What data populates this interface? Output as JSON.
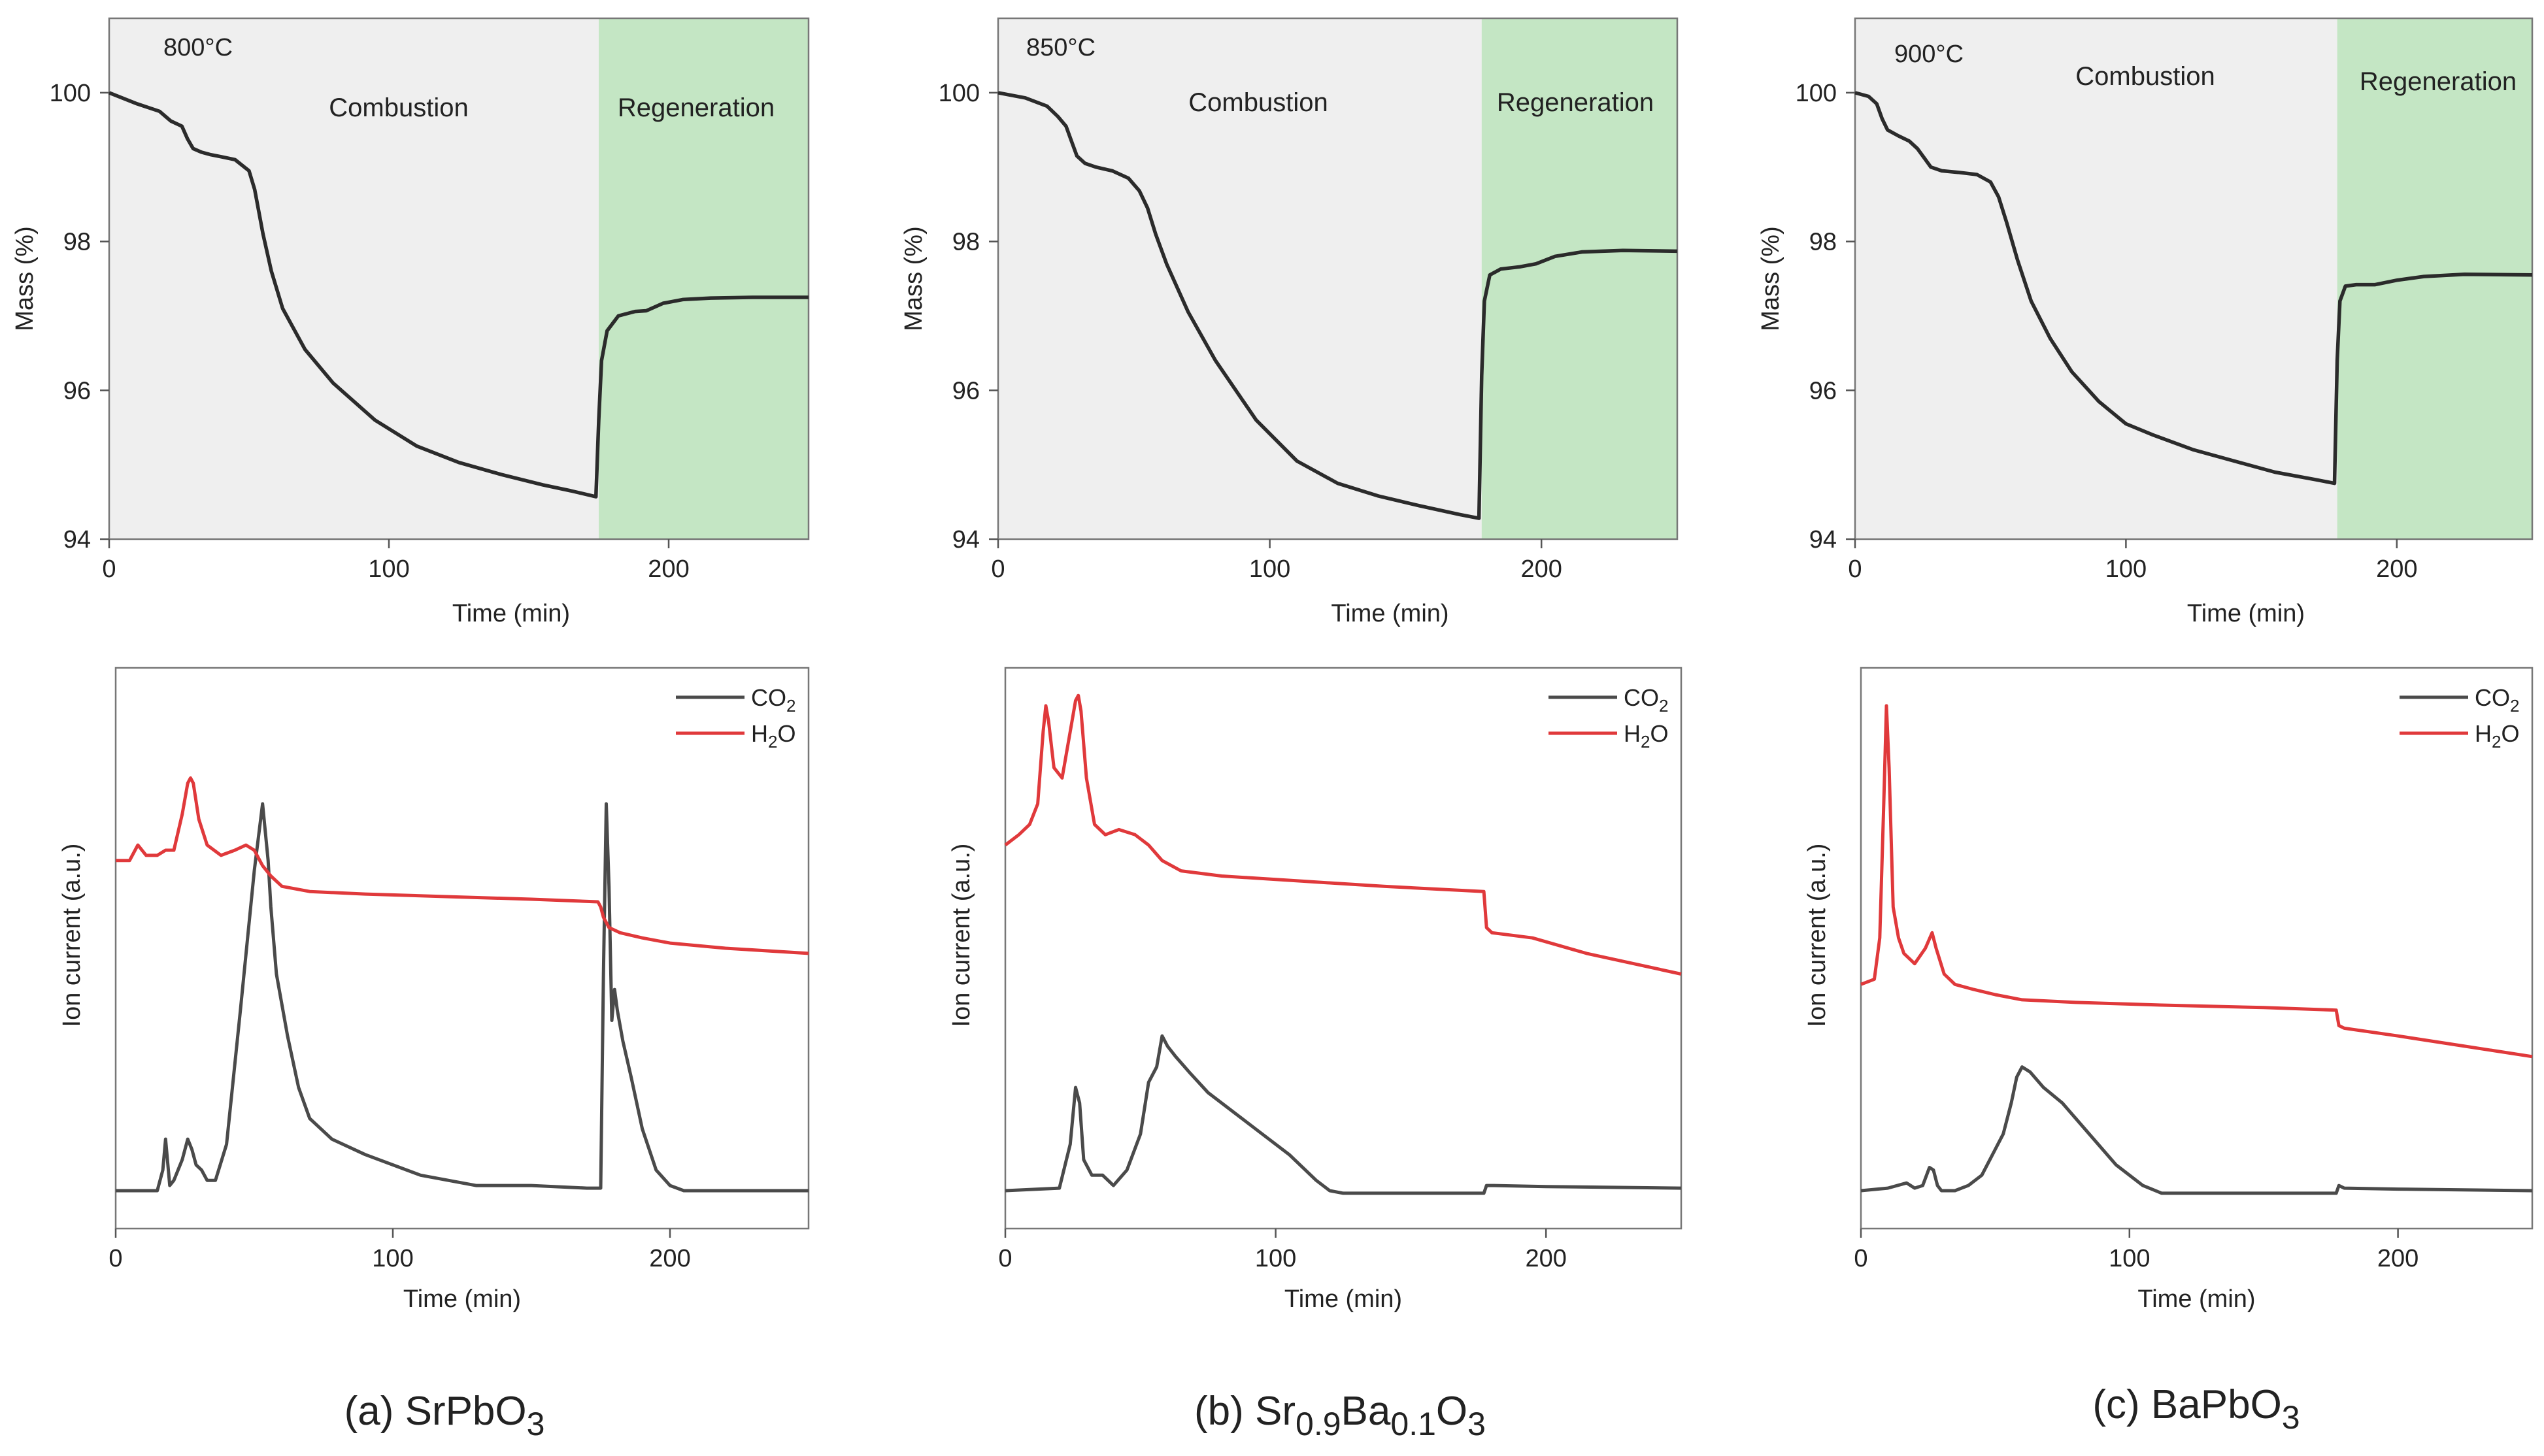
{
  "chart_data": {
    "type": "line",
    "panels": [
      {
        "caption": {
          "prefix": "(a) SrPbO",
          "sub": "3",
          "parts": [
            {
              "t": "(a) SrPbO",
              "s": false
            },
            {
              "t": "3",
              "s": true
            }
          ]
        },
        "mass": {
          "temperature_label": "800°C",
          "combustion_label": "Combustion",
          "regeneration_label": "Regeneration",
          "xlabel": "Time (min)",
          "ylabel": "Mass (%)",
          "xlim": [
            0,
            250
          ],
          "ylim": [
            94,
            101
          ],
          "xticks": [
            0,
            100,
            200
          ],
          "yticks": [
            94,
            96,
            98,
            100
          ],
          "regen_start": 175,
          "line_color": "#2b2b2b",
          "x": [
            0,
            10,
            18,
            22,
            26,
            28,
            30,
            33,
            36,
            40,
            45,
            50,
            52,
            55,
            58,
            62,
            70,
            80,
            95,
            110,
            125,
            140,
            155,
            165,
            174,
            175,
            176,
            178,
            182,
            188,
            192,
            198,
            205,
            215,
            230,
            250
          ],
          "y": [
            100,
            99.85,
            99.75,
            99.62,
            99.55,
            99.38,
            99.25,
            99.2,
            99.17,
            99.14,
            99.1,
            98.95,
            98.7,
            98.1,
            97.6,
            97.1,
            96.55,
            96.1,
            95.6,
            95.25,
            95.03,
            94.87,
            94.73,
            94.65,
            94.57,
            95.6,
            96.4,
            96.8,
            97.0,
            97.06,
            97.07,
            97.17,
            97.22,
            97.24,
            97.25,
            97.25
          ]
        },
        "ion": {
          "xlabel": "Time (min)",
          "ylabel": "Ion current (a.u.)",
          "xlim": [
            0,
            250
          ],
          "ylim": [
            0,
            1
          ],
          "xticks": [
            0,
            100,
            200
          ],
          "legend": [
            {
              "main": "CO",
              "sub": "2",
              "color": "#4a4a4a"
            },
            {
              "main": "H",
              "sub": "2",
              "tail": "O",
              "color": "#e0393b"
            }
          ],
          "series": [
            {
              "name": "CO2",
              "color": "#4a4a4a",
              "x": [
                0,
                15,
                17,
                18,
                19.5,
                21,
                24,
                26,
                27.5,
                29,
                31,
                33,
                36,
                40,
                45,
                50,
                53,
                55,
                56,
                58,
                62,
                66,
                70,
                78,
                90,
                110,
                130,
                150,
                170,
                175,
                176,
                177,
                178,
                179,
                180,
                181,
                183,
                186,
                190,
                195,
                200,
                205,
                215,
                250
              ],
              "y": [
                0.03,
                0.03,
                0.07,
                0.13,
                0.04,
                0.05,
                0.09,
                0.13,
                0.11,
                0.08,
                0.07,
                0.05,
                0.05,
                0.12,
                0.38,
                0.65,
                0.78,
                0.67,
                0.58,
                0.45,
                0.33,
                0.23,
                0.17,
                0.13,
                0.1,
                0.06,
                0.04,
                0.04,
                0.035,
                0.035,
                0.45,
                0.78,
                0.62,
                0.36,
                0.42,
                0.38,
                0.32,
                0.25,
                0.15,
                0.07,
                0.04,
                0.03,
                0.03,
                0.03
              ]
            },
            {
              "name": "H2O",
              "color": "#e0393b",
              "x": [
                0,
                5,
                8,
                11,
                15,
                18,
                21,
                24,
                26,
                27,
                28,
                30,
                33,
                38,
                43,
                47,
                50,
                53,
                56,
                60,
                70,
                90,
                120,
                150,
                174,
                175,
                176,
                178,
                182,
                190,
                200,
                220,
                250
              ],
              "y": [
                0.67,
                0.67,
                0.7,
                0.68,
                0.68,
                0.69,
                0.69,
                0.76,
                0.82,
                0.83,
                0.82,
                0.75,
                0.7,
                0.68,
                0.69,
                0.7,
                0.69,
                0.66,
                0.64,
                0.62,
                0.61,
                0.605,
                0.6,
                0.595,
                0.59,
                0.58,
                0.56,
                0.54,
                0.53,
                0.52,
                0.51,
                0.5,
                0.49
              ]
            }
          ]
        }
      },
      {
        "caption": {
          "parts": [
            {
              "t": "(b) Sr",
              "s": false
            },
            {
              "t": "0.9",
              "s": true
            },
            {
              "t": "Ba",
              "s": false
            },
            {
              "t": "0.1",
              "s": true
            },
            {
              "t": "O",
              "s": false
            },
            {
              "t": "3",
              "s": true
            }
          ]
        },
        "mass": {
          "temperature_label": "850°C",
          "combustion_label": "Combustion",
          "regeneration_label": "Regeneration",
          "xlabel": "Time (min)",
          "ylabel": "Mass (%)",
          "xlim": [
            0,
            250
          ],
          "ylim": [
            94,
            101
          ],
          "xticks": [
            0,
            100,
            200
          ],
          "yticks": [
            94,
            96,
            98,
            100
          ],
          "regen_start": 178,
          "line_color": "#2b2b2b",
          "x": [
            0,
            10,
            18,
            22,
            25,
            27,
            29,
            32,
            36,
            42,
            48,
            52,
            55,
            58,
            62,
            70,
            80,
            95,
            110,
            125,
            140,
            155,
            170,
            177,
            178,
            179,
            181,
            185,
            192,
            198,
            205,
            215,
            230,
            250
          ],
          "y": [
            100,
            99.93,
            99.82,
            99.68,
            99.55,
            99.35,
            99.15,
            99.05,
            99.0,
            98.95,
            98.85,
            98.68,
            98.45,
            98.1,
            97.7,
            97.05,
            96.4,
            95.6,
            95.05,
            94.75,
            94.58,
            94.45,
            94.33,
            94.28,
            96.2,
            97.2,
            97.55,
            97.63,
            97.66,
            97.7,
            97.8,
            97.86,
            97.88,
            97.87
          ]
        },
        "ion": {
          "xlabel": "Time (min)",
          "ylabel": "Ion current (a.u.)",
          "xlim": [
            0,
            250
          ],
          "ylim": [
            0,
            1
          ],
          "xticks": [
            0,
            100,
            200
          ],
          "legend": [
            {
              "main": "CO",
              "sub": "2",
              "color": "#4a4a4a"
            },
            {
              "main": "H",
              "sub": "2",
              "tail": "O",
              "color": "#e0393b"
            }
          ],
          "series": [
            {
              "name": "CO2",
              "color": "#4a4a4a",
              "x": [
                0,
                20,
                24,
                26,
                27.5,
                29,
                32,
                36,
                40,
                45,
                50,
                53,
                56,
                58,
                60,
                63,
                68,
                75,
                85,
                95,
                105,
                115,
                120,
                125,
                140,
                160,
                177,
                178,
                180,
                200,
                250
              ],
              "y": [
                0.03,
                0.035,
                0.12,
                0.23,
                0.2,
                0.09,
                0.06,
                0.06,
                0.04,
                0.07,
                0.14,
                0.24,
                0.27,
                0.33,
                0.31,
                0.29,
                0.26,
                0.22,
                0.18,
                0.14,
                0.1,
                0.05,
                0.03,
                0.025,
                0.025,
                0.025,
                0.025,
                0.04,
                0.04,
                0.038,
                0.035
              ]
            },
            {
              "name": "H2O",
              "color": "#e0393b",
              "x": [
                0,
                5,
                9,
                12,
                14,
                15,
                16,
                18,
                21,
                24,
                26,
                27,
                28,
                30,
                33,
                37,
                42,
                48,
                53,
                58,
                65,
                80,
                110,
                140,
                177,
                178,
                180,
                195,
                215,
                250
              ],
              "y": [
                0.7,
                0.72,
                0.74,
                0.78,
                0.92,
                0.97,
                0.94,
                0.85,
                0.83,
                0.92,
                0.98,
                0.99,
                0.96,
                0.83,
                0.74,
                0.72,
                0.73,
                0.72,
                0.7,
                0.67,
                0.65,
                0.64,
                0.63,
                0.62,
                0.61,
                0.54,
                0.53,
                0.52,
                0.49,
                0.45
              ]
            }
          ]
        }
      },
      {
        "caption": {
          "parts": [
            {
              "t": "(c) BaPbO",
              "s": false
            },
            {
              "t": "3",
              "s": true
            }
          ]
        },
        "mass": {
          "temperature_label": "900°C",
          "combustion_label": "Combustion",
          "regeneration_label": "Regeneration",
          "xlabel": "Time (min)",
          "ylabel": "Mass (%)",
          "xlim": [
            0,
            250
          ],
          "ylim": [
            94,
            101
          ],
          "xticks": [
            0,
            100,
            200
          ],
          "yticks": [
            94,
            96,
            98,
            100
          ],
          "regen_start": 178,
          "line_color": "#2b2b2b",
          "x": [
            0,
            5,
            8,
            10,
            12,
            16,
            20,
            23,
            26,
            28,
            32,
            38,
            45,
            50,
            53,
            56,
            60,
            65,
            72,
            80,
            90,
            100,
            110,
            125,
            140,
            155,
            170,
            177,
            178,
            179,
            181,
            185,
            192,
            200,
            210,
            225,
            250
          ],
          "y": [
            100,
            99.95,
            99.85,
            99.65,
            99.5,
            99.42,
            99.35,
            99.25,
            99.1,
            99.0,
            98.95,
            98.93,
            98.9,
            98.8,
            98.6,
            98.25,
            97.75,
            97.2,
            96.7,
            96.25,
            95.85,
            95.55,
            95.4,
            95.2,
            95.05,
            94.9,
            94.8,
            94.75,
            96.4,
            97.2,
            97.4,
            97.42,
            97.42,
            97.48,
            97.53,
            97.56,
            97.55
          ]
        },
        "ion": {
          "xlabel": "Time (min)",
          "ylabel": "Ion current (a.u.)",
          "xlim": [
            0,
            250
          ],
          "ylim": [
            0,
            1
          ],
          "xticks": [
            0,
            100,
            200
          ],
          "legend": [
            {
              "main": "CO",
              "sub": "2",
              "color": "#4a4a4a"
            },
            {
              "main": "H",
              "sub": "2",
              "tail": "O",
              "color": "#e0393b"
            }
          ],
          "series": [
            {
              "name": "CO2",
              "color": "#4a4a4a",
              "x": [
                0,
                10,
                17,
                20,
                23,
                25.5,
                27,
                28.5,
                30,
                35,
                40,
                45,
                50,
                53,
                56,
                58,
                60,
                63,
                68,
                75,
                85,
                95,
                105,
                112,
                130,
                150,
                177,
                178,
                180,
                200,
                250
              ],
              "y": [
                0.03,
                0.035,
                0.045,
                0.035,
                0.04,
                0.075,
                0.07,
                0.04,
                0.03,
                0.03,
                0.04,
                0.06,
                0.11,
                0.14,
                0.2,
                0.25,
                0.27,
                0.26,
                0.23,
                0.2,
                0.14,
                0.08,
                0.04,
                0.025,
                0.025,
                0.025,
                0.025,
                0.04,
                0.035,
                0.033,
                0.03
              ]
            },
            {
              "name": "H2O",
              "color": "#e0393b",
              "x": [
                0,
                5,
                7,
                8.5,
                9.5,
                10.5,
                12,
                14,
                16,
                20,
                24,
                26.5,
                28,
                31,
                35,
                42,
                50,
                60,
                80,
                110,
                150,
                177,
                178,
                180,
                200,
                225,
                250
              ],
              "y": [
                0.43,
                0.44,
                0.52,
                0.78,
                0.97,
                0.85,
                0.58,
                0.52,
                0.49,
                0.47,
                0.5,
                0.53,
                0.5,
                0.45,
                0.43,
                0.42,
                0.41,
                0.4,
                0.395,
                0.39,
                0.385,
                0.38,
                0.35,
                0.345,
                0.33,
                0.31,
                0.29
              ]
            }
          ]
        }
      }
    ]
  }
}
